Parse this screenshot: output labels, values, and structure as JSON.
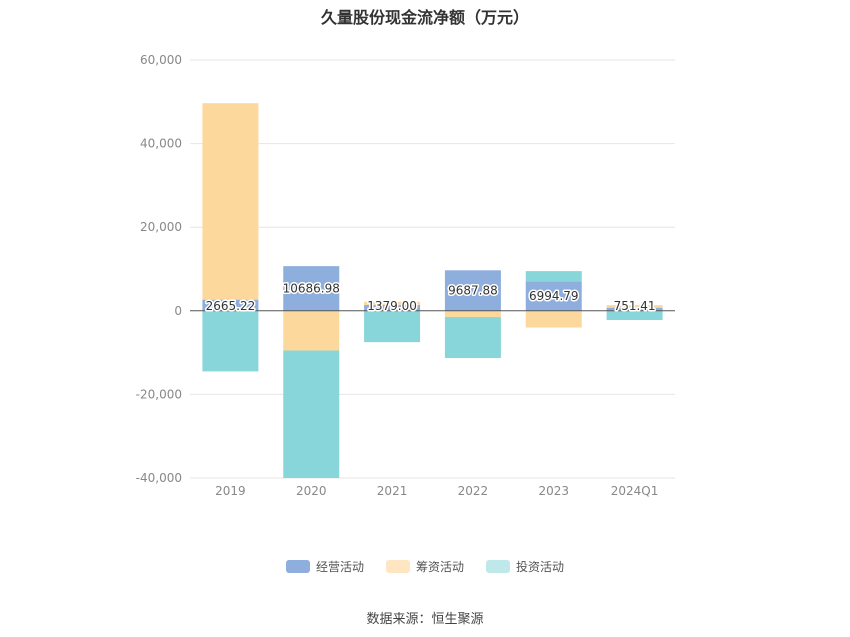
{
  "title": "久量股份现金流净额（万元）",
  "source": "数据来源：恒生聚源",
  "chart_data": {
    "type": "bar",
    "stacked": true,
    "title": "久量股份现金流净额（万元）",
    "categories": [
      "2019",
      "2020",
      "2021",
      "2022",
      "2023",
      "2024Q1"
    ],
    "series": [
      {
        "name": "经营活动",
        "color": "#8eaedd",
        "values": [
          2665.22,
          10686.98,
          1379.0,
          9687.88,
          6994.79,
          751.41
        ]
      },
      {
        "name": "筹资活动",
        "color": "#fdd89c",
        "values": [
          47000,
          -9500,
          800,
          -1500,
          -4000,
          600
        ]
      },
      {
        "name": "投资活动",
        "color": "#89d6da",
        "values": [
          -14500,
          -31500,
          -7500,
          -9800,
          2500,
          -2200
        ]
      }
    ],
    "data_labels": [
      "2665.22",
      "10686.98",
      "1379.00",
      "9687.88",
      "6994.79",
      "751.41"
    ],
    "yticks": [
      60000,
      40000,
      20000,
      0,
      -20000,
      -40000
    ],
    "ytick_labels": [
      "60,000",
      "40,000",
      "20,000",
      "0",
      "-20,000",
      "-40,000"
    ],
    "ylim": [
      -40000,
      60000
    ],
    "grid": true,
    "legend_position": "bottom"
  }
}
